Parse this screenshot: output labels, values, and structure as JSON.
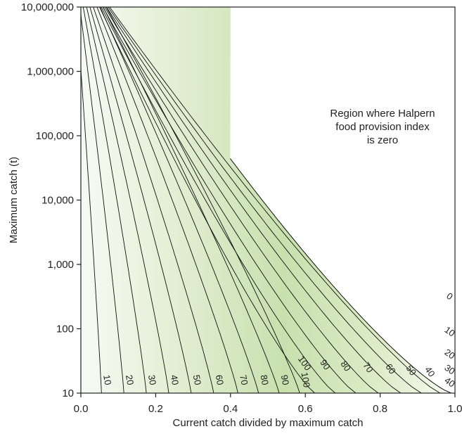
{
  "chart_data": {
    "type": "contour",
    "xlabel": "Current catch divided by maximum catch",
    "ylabel": "Maximum catch (t)",
    "xlim": [
      0.0,
      1.0
    ],
    "ylim": [
      10,
      10000000
    ],
    "y_scale": "log",
    "x_ticks": [
      "0.0",
      "0.2",
      "0.4",
      "0.6",
      "0.8",
      "1.0"
    ],
    "y_ticks": [
      "10",
      "100",
      "1,000",
      "10,000",
      "100,000",
      "1,000,000",
      "10,000,000"
    ],
    "annotation": [
      "Region where Halpern",
      "food provision index",
      "is zero"
    ],
    "colors": {
      "fill": "#c8e0ae",
      "line": "#111111"
    },
    "levels_bottom_left": [
      {
        "label": "10",
        "x": 0.055
      },
      {
        "label": "20",
        "x": 0.115
      },
      {
        "label": "30",
        "x": 0.175
      },
      {
        "label": "40",
        "x": 0.235
      },
      {
        "label": "50",
        "x": 0.295
      },
      {
        "label": "60",
        "x": 0.355
      },
      {
        "label": "70",
        "x": 0.42
      },
      {
        "label": "80",
        "x": 0.475
      },
      {
        "label": "90",
        "x": 0.53
      },
      {
        "label": "100",
        "x": 0.585
      }
    ],
    "levels_bottom_right": [
      {
        "label": "100",
        "x": 0.625
      },
      {
        "label": "90",
        "x": 0.68
      },
      {
        "label": "80",
        "x": 0.735
      },
      {
        "label": "70",
        "x": 0.795
      },
      {
        "label": "60",
        "x": 0.855
      },
      {
        "label": "50",
        "x": 0.91
      },
      {
        "label": "40",
        "x": 0.96
      }
    ],
    "levels_right_edge": [
      {
        "label": "0",
        "y": 140
      },
      {
        "label": "10",
        "y": 90
      },
      {
        "label": "20",
        "y": 58
      },
      {
        "label": "30",
        "y": 36
      },
      {
        "label": "40",
        "y": 18
      }
    ]
  }
}
